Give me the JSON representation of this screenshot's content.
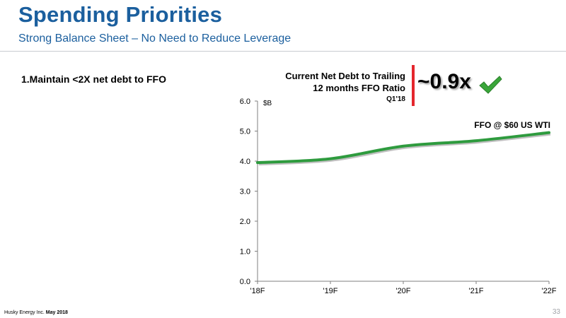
{
  "header": {
    "title": "Spending Priorities",
    "subtitle": "Strong Balance Sheet – No Need to Reduce Leverage"
  },
  "priority_item": "1.Maintain <2X net debt to FFO",
  "callout": {
    "line1": "Current Net Debt to Trailing",
    "line2": "12 months FFO Ratio",
    "period": "Q1'18",
    "value": "~0.9x",
    "accent_color": "#e4262d",
    "check_icon": "check-icon",
    "check_color": "#3aa63a"
  },
  "footer": {
    "company": "Husky Energy Inc.",
    "date": "May 2018",
    "page": "33"
  },
  "colors": {
    "title": "#1b5f9e",
    "series": "#2e9b3e"
  },
  "chart_data": {
    "type": "line",
    "categories": [
      "'18F",
      "'19F",
      "'20F",
      "'21F",
      "'22F"
    ],
    "series": [
      {
        "name": "FFO @ $60 US WTI",
        "values": [
          3.95,
          4.08,
          4.5,
          4.68,
          4.95
        ]
      }
    ],
    "ylabel": "$B",
    "ylim": [
      0,
      6
    ],
    "yticks": [
      "0.0",
      "1.0",
      "2.0",
      "3.0",
      "4.0",
      "5.0",
      "6.0"
    ],
    "grid": false
  }
}
